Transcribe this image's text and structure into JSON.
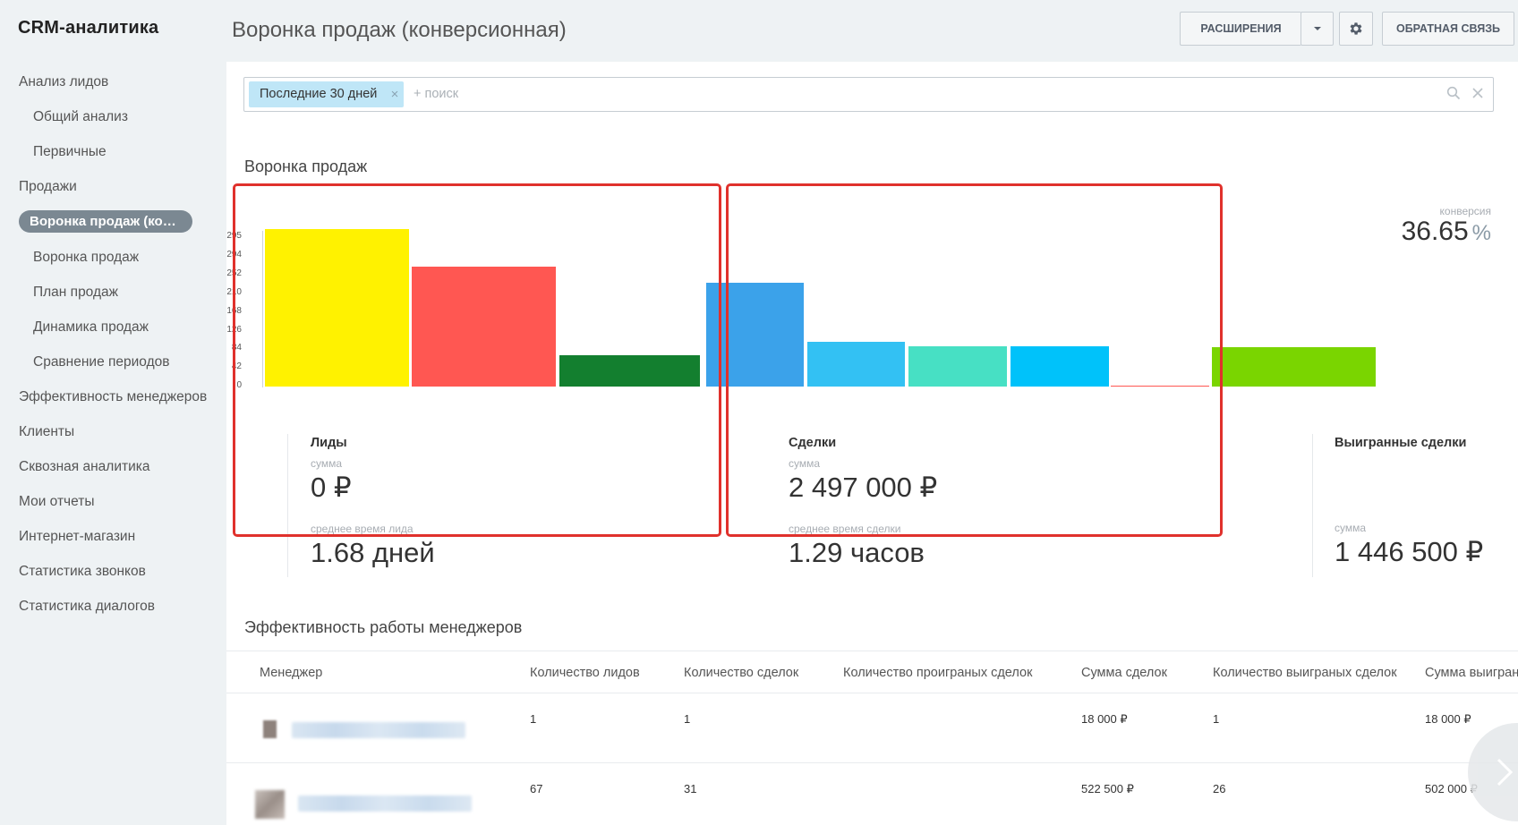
{
  "app": {
    "title": "CRM-аналитика"
  },
  "sidebar": {
    "items": [
      {
        "label": "Анализ лидов",
        "level": 0
      },
      {
        "label": "Общий анализ",
        "level": 1
      },
      {
        "label": "Первичные",
        "level": 1
      },
      {
        "label": "Продажи",
        "level": 0
      },
      {
        "label": "Воронка продаж (конверсионная)",
        "level": 1,
        "active": true
      },
      {
        "label": "Воронка продаж",
        "level": 1
      },
      {
        "label": "План продаж",
        "level": 1
      },
      {
        "label": "Динамика продаж",
        "level": 1
      },
      {
        "label": "Сравнение периодов",
        "level": 1
      },
      {
        "label": "Эффективность менеджеров",
        "level": 0
      },
      {
        "label": "Клиенты",
        "level": 0
      },
      {
        "label": "Сквозная аналитика",
        "level": 0
      },
      {
        "label": "Мои отчеты",
        "level": 0
      },
      {
        "label": "Интернет-магазин",
        "level": 0
      },
      {
        "label": "Статистика звонков",
        "level": 0
      },
      {
        "label": "Статистика диалогов",
        "level": 0
      }
    ]
  },
  "header": {
    "title": "Воронка продаж (конверсионная)",
    "extensions_label": "РАСШИРЕНИЯ",
    "feedback_label": "ОБРАТНАЯ СВЯЗЬ",
    "gear_icon": "gear-icon",
    "dropdown_icon": "chevron-down-icon"
  },
  "filter": {
    "tag": "Последние 30 дней",
    "placeholder": "+ поиск",
    "search_icon": "search-icon",
    "clear_icon": "close-icon"
  },
  "funnel": {
    "section_title": "Воронка продаж",
    "leads": {
      "title": "Лиды",
      "sum_label": "сумма",
      "sum_value": "0 ₽",
      "time_label": "среднее время лида",
      "time_value": "1.68 дней"
    },
    "deals": {
      "title": "Сделки",
      "sum_label": "сумма",
      "sum_value": "2 497 000 ₽",
      "time_label": "среднее время сделки",
      "time_value": "1.29 часов"
    },
    "won": {
      "title": "Выигранные сделки",
      "sum_label": "сумма",
      "sum_value": "1 446 500 ₽"
    },
    "conversion": {
      "label": "конверсия",
      "value": "36.65",
      "unit": "%"
    }
  },
  "chart_data": {
    "type": "bar",
    "y_ticks": [
      "0",
      "42",
      "84",
      "126",
      "168",
      "210",
      "252",
      "294",
      "295"
    ],
    "ylim": [
      0,
      295
    ],
    "bars": [
      {
        "value": 295,
        "color": "#fff200"
      },
      {
        "value": 224,
        "color": "#ff5752"
      },
      {
        "value": 58,
        "color": "#137f2f"
      },
      {
        "value": 194,
        "color": "#3ba2ea"
      },
      {
        "value": 83,
        "color": "#33c1f3"
      },
      {
        "value": 76,
        "color": "#47e0c4"
      },
      {
        "value": 76,
        "color": "#00c2fa"
      },
      {
        "value": 2,
        "color": "#ff5752"
      },
      {
        "value": 73,
        "color": "#7ad500"
      }
    ]
  },
  "managers": {
    "section_title": "Эффективность работы менеджеров",
    "columns": [
      "Менеджер",
      "Количество лидов",
      "Количество сделок",
      "Количество проиграных сделок",
      "Сумма сделок",
      "Количество выиграных сделок",
      "Сумма выиграных сделок"
    ],
    "rows": [
      {
        "leads": "1",
        "deals": "1",
        "lost": "",
        "sum": "18 000 ₽",
        "won": "1",
        "won_sum": "18 000 ₽"
      },
      {
        "leads": "67",
        "deals": "31",
        "lost": "",
        "sum": "522 500 ₽",
        "won": "26",
        "won_sum": "502 000 ₽"
      }
    ],
    "next_icon": "chevron-right-icon"
  }
}
